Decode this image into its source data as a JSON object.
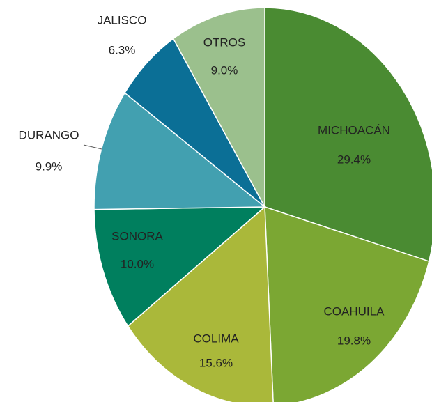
{
  "chart_data": {
    "type": "pie",
    "categories": [
      "MICHOACÁN",
      "COAHUILA",
      "COLIMA",
      "SONORA",
      "DURANGO",
      "JALISCO",
      "OTROS"
    ],
    "values": [
      29.4,
      19.8,
      15.6,
      10.0,
      9.9,
      6.3,
      9.0
    ],
    "value_labels": [
      "29.4%",
      "19.8%",
      "15.6%",
      "10.0%",
      "9.9%",
      "6.3%",
      "9.0%"
    ],
    "colors": [
      "#4a8b32",
      "#7ba733",
      "#aab83a",
      "#007f5e",
      "#42a0b0",
      "#0b6f96",
      "#9bc08d"
    ]
  }
}
